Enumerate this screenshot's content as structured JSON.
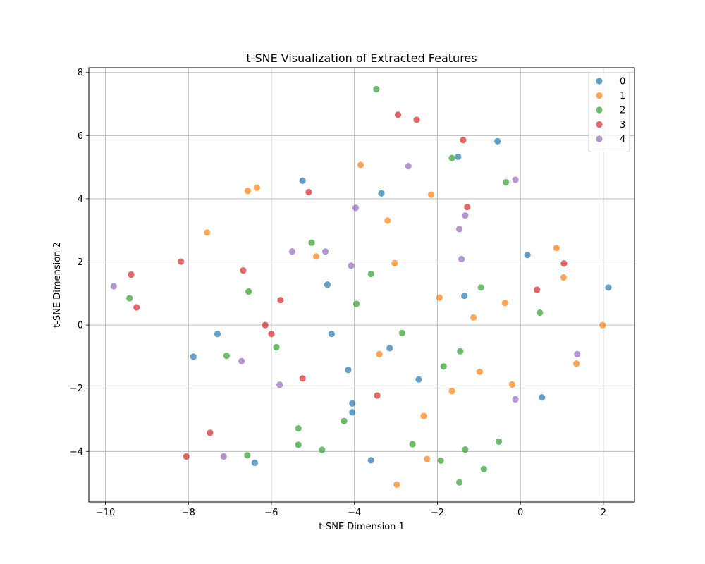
{
  "chart_data": {
    "type": "scatter",
    "title": "t-SNE Visualization of Extracted Features",
    "xlabel": "t-SNE Dimension 1",
    "ylabel": "t-SNE Dimension 2",
    "xlim": [
      -10.4,
      2.75
    ],
    "ylim": [
      -5.6,
      8.15
    ],
    "xticks": [
      -10,
      -8,
      -6,
      -4,
      -2,
      0,
      2
    ],
    "yticks": [
      -4,
      -2,
      0,
      2,
      4,
      6,
      8
    ],
    "grid": true,
    "legend_position": "top-right",
    "series": [
      {
        "name": "0",
        "color": "#1f77b4",
        "points": [
          [
            -0.55,
            5.82
          ],
          [
            -1.5,
            5.33
          ],
          [
            -5.25,
            4.57
          ],
          [
            -3.35,
            4.17
          ],
          [
            0.17,
            2.22
          ],
          [
            -4.65,
            1.28
          ],
          [
            2.12,
            1.19
          ],
          [
            -1.35,
            0.93
          ],
          [
            -7.3,
            -0.28
          ],
          [
            -4.55,
            -0.28
          ],
          [
            -7.88,
            -1.0
          ],
          [
            -3.15,
            -0.73
          ],
          [
            -4.15,
            -1.42
          ],
          [
            -2.45,
            -1.72
          ],
          [
            -4.05,
            -2.48
          ],
          [
            -4.05,
            -2.76
          ],
          [
            0.52,
            -2.29
          ],
          [
            -3.6,
            -4.28
          ],
          [
            -6.4,
            -4.36
          ]
        ]
      },
      {
        "name": "1",
        "color": "#ff7f0e",
        "points": [
          [
            -3.85,
            5.07
          ],
          [
            -6.35,
            4.35
          ],
          [
            -6.57,
            4.25
          ],
          [
            -2.15,
            4.13
          ],
          [
            -3.2,
            3.31
          ],
          [
            -7.55,
            2.93
          ],
          [
            0.87,
            2.44
          ],
          [
            -4.92,
            2.17
          ],
          [
            -3.03,
            1.96
          ],
          [
            1.04,
            1.51
          ],
          [
            -1.95,
            0.87
          ],
          [
            -0.37,
            0.7
          ],
          [
            -1.13,
            0.24
          ],
          [
            1.98,
            0.0
          ],
          [
            -3.4,
            -0.92
          ],
          [
            1.35,
            -1.22
          ],
          [
            -0.98,
            -1.48
          ],
          [
            -0.2,
            -1.88
          ],
          [
            -1.65,
            -2.09
          ],
          [
            -2.33,
            -2.88
          ],
          [
            -2.25,
            -4.24
          ],
          [
            -2.98,
            -5.05
          ]
        ]
      },
      {
        "name": "2",
        "color": "#2ca02c",
        "points": [
          [
            -3.47,
            7.47
          ],
          [
            -1.65,
            5.29
          ],
          [
            -0.35,
            4.52
          ],
          [
            -5.03,
            2.61
          ],
          [
            -3.6,
            1.62
          ],
          [
            -0.95,
            1.19
          ],
          [
            -9.42,
            0.85
          ],
          [
            -6.55,
            1.06
          ],
          [
            -3.95,
            0.67
          ],
          [
            0.47,
            0.39
          ],
          [
            -2.85,
            -0.25
          ],
          [
            -5.88,
            -0.7
          ],
          [
            -7.08,
            -0.97
          ],
          [
            -1.45,
            -0.83
          ],
          [
            -1.85,
            -1.31
          ],
          [
            -5.35,
            -3.27
          ],
          [
            -4.25,
            -3.04
          ],
          [
            -5.35,
            -3.79
          ],
          [
            -4.78,
            -3.95
          ],
          [
            -2.6,
            -3.77
          ],
          [
            -0.52,
            -3.69
          ],
          [
            -1.33,
            -3.94
          ],
          [
            -6.58,
            -4.12
          ],
          [
            -1.92,
            -4.29
          ],
          [
            -0.88,
            -4.56
          ],
          [
            -1.47,
            -4.98
          ]
        ]
      },
      {
        "name": "3",
        "color": "#d62728",
        "points": [
          [
            -2.95,
            6.66
          ],
          [
            -2.5,
            6.5
          ],
          [
            -1.38,
            5.86
          ],
          [
            -5.1,
            4.21
          ],
          [
            -1.28,
            3.74
          ],
          [
            -8.18,
            2.01
          ],
          [
            -6.68,
            1.73
          ],
          [
            -9.38,
            1.6
          ],
          [
            1.05,
            1.95
          ],
          [
            0.4,
            1.12
          ],
          [
            -9.25,
            0.56
          ],
          [
            -5.78,
            0.79
          ],
          [
            -6.15,
            0.0
          ],
          [
            -6.0,
            -0.28
          ],
          [
            -5.25,
            -1.69
          ],
          [
            -3.45,
            -2.23
          ],
          [
            -7.48,
            -3.41
          ],
          [
            -8.05,
            -4.16
          ]
        ]
      },
      {
        "name": "4",
        "color": "#9467bd",
        "points": [
          [
            -2.7,
            5.03
          ],
          [
            -0.12,
            4.6
          ],
          [
            -3.97,
            3.71
          ],
          [
            -1.33,
            3.47
          ],
          [
            -1.47,
            3.04
          ],
          [
            -5.5,
            2.33
          ],
          [
            -4.7,
            2.33
          ],
          [
            -1.42,
            2.09
          ],
          [
            -4.08,
            1.88
          ],
          [
            -9.8,
            1.23
          ],
          [
            1.37,
            -0.92
          ],
          [
            -6.72,
            -1.14
          ],
          [
            -5.8,
            -1.89
          ],
          [
            -0.12,
            -2.35
          ],
          [
            -7.15,
            -4.16
          ]
        ]
      }
    ]
  }
}
